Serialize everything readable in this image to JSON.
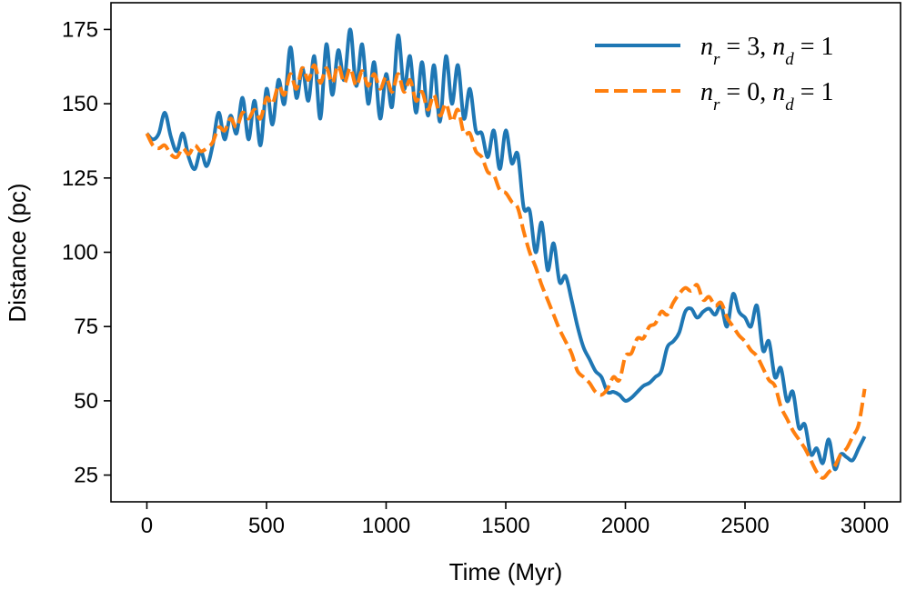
{
  "chart_data": {
    "type": "line",
    "title": "",
    "xlabel": "Time (Myr)",
    "ylabel": "Distance (pc)",
    "xlim": [
      -150,
      3150
    ],
    "ylim": [
      16,
      184
    ],
    "xticks": [
      0,
      500,
      1000,
      1500,
      2000,
      2500,
      3000
    ],
    "yticks": [
      25,
      50,
      75,
      100,
      125,
      150,
      175
    ],
    "legend_position": "top-right",
    "grid": false,
    "series": [
      {
        "name": "n_r=3, n_d=1",
        "label_parts": [
          "n",
          "r",
          " = 3,  ",
          "n",
          "d",
          " = 1"
        ],
        "color": "#1f77b4",
        "style": "solid",
        "x": [
          0,
          25,
          50,
          75,
          100,
          125,
          150,
          175,
          200,
          225,
          250,
          275,
          300,
          325,
          350,
          375,
          400,
          425,
          450,
          475,
          500,
          525,
          550,
          575,
          600,
          625,
          650,
          675,
          700,
          725,
          750,
          775,
          800,
          825,
          850,
          875,
          900,
          925,
          950,
          975,
          1000,
          1025,
          1050,
          1075,
          1100,
          1125,
          1150,
          1175,
          1200,
          1225,
          1250,
          1275,
          1300,
          1325,
          1350,
          1375,
          1400,
          1425,
          1450,
          1475,
          1500,
          1525,
          1550,
          1575,
          1600,
          1625,
          1650,
          1675,
          1700,
          1725,
          1750,
          1775,
          1800,
          1825,
          1850,
          1875,
          1900,
          1925,
          1950,
          1975,
          2000,
          2025,
          2050,
          2075,
          2100,
          2125,
          2150,
          2175,
          2200,
          2225,
          2250,
          2275,
          2300,
          2325,
          2350,
          2375,
          2400,
          2425,
          2450,
          2475,
          2500,
          2525,
          2550,
          2575,
          2600,
          2625,
          2650,
          2675,
          2700,
          2725,
          2750,
          2775,
          2800,
          2825,
          2850,
          2875,
          2900,
          2925,
          2950,
          2975,
          3000
        ],
        "y": [
          140,
          138,
          140,
          147,
          139,
          134,
          140,
          132,
          128,
          134,
          129,
          136,
          147,
          138,
          146,
          140,
          152,
          138,
          151,
          136,
          155,
          143,
          158,
          150,
          169,
          152,
          162,
          151,
          166,
          145,
          170,
          153,
          168,
          158,
          175,
          156,
          170,
          150,
          164,
          145,
          160,
          149,
          173,
          155,
          166,
          147,
          164,
          146,
          163,
          144,
          166,
          150,
          163,
          145,
          155,
          141,
          140,
          132,
          141,
          128,
          141,
          130,
          133,
          115,
          114,
          100,
          110,
          94,
          103,
          90,
          92,
          84,
          75,
          68,
          64,
          60,
          58,
          53,
          53,
          52,
          50,
          51,
          53,
          55,
          56,
          58,
          60,
          68,
          70,
          73,
          80,
          81,
          78,
          80,
          81,
          79,
          82,
          75,
          86,
          80,
          78,
          75,
          82,
          67,
          70,
          58,
          61,
          50,
          53,
          41,
          42,
          32,
          34,
          29,
          37,
          27,
          32,
          31,
          30,
          34,
          38
        ]
      },
      {
        "name": "n_r=0, n_d=1",
        "label_parts": [
          "n",
          "r",
          " = 0,  ",
          "n",
          "d",
          " = 1"
        ],
        "color": "#ff7f0e",
        "style": "dashed",
        "x": [
          0,
          25,
          50,
          75,
          100,
          125,
          150,
          175,
          200,
          225,
          250,
          275,
          300,
          325,
          350,
          375,
          400,
          425,
          450,
          475,
          500,
          525,
          550,
          575,
          600,
          625,
          650,
          675,
          700,
          725,
          750,
          775,
          800,
          825,
          850,
          875,
          900,
          925,
          950,
          975,
          1000,
          1025,
          1050,
          1075,
          1100,
          1125,
          1150,
          1175,
          1200,
          1225,
          1250,
          1275,
          1300,
          1325,
          1350,
          1375,
          1400,
          1425,
          1450,
          1475,
          1500,
          1525,
          1550,
          1575,
          1600,
          1625,
          1650,
          1675,
          1700,
          1725,
          1750,
          1775,
          1800,
          1825,
          1850,
          1875,
          1900,
          1925,
          1950,
          1975,
          2000,
          2025,
          2050,
          2075,
          2100,
          2125,
          2150,
          2175,
          2200,
          2225,
          2250,
          2275,
          2300,
          2325,
          2350,
          2375,
          2400,
          2425,
          2450,
          2475,
          2500,
          2525,
          2550,
          2575,
          2600,
          2625,
          2650,
          2675,
          2700,
          2725,
          2750,
          2775,
          2800,
          2825,
          2850,
          2875,
          2900,
          2925,
          2950,
          2975,
          3000
        ],
        "y": [
          140,
          136,
          135,
          136,
          133,
          132,
          135,
          133,
          136,
          134,
          135,
          137,
          142,
          141,
          145,
          142,
          147,
          145,
          148,
          145,
          152,
          150,
          156,
          153,
          160,
          155,
          162,
          158,
          163,
          157,
          162,
          157,
          163,
          157,
          162,
          156,
          161,
          156,
          160,
          155,
          159,
          154,
          160,
          154,
          158,
          151,
          154,
          148,
          153,
          146,
          150,
          144,
          148,
          140,
          140,
          134,
          132,
          127,
          126,
          121,
          120,
          117,
          115,
          107,
          100,
          95,
          89,
          84,
          79,
          74,
          70,
          66,
          60,
          58,
          56,
          53,
          52,
          54,
          58,
          57,
          65,
          66,
          71,
          71,
          75,
          76,
          80,
          79,
          83,
          86,
          88,
          87,
          89,
          84,
          85,
          82,
          83,
          78,
          75,
          72,
          70,
          67,
          65,
          61,
          57,
          55,
          48,
          44,
          40,
          37,
          34,
          30,
          26,
          24,
          26,
          28,
          32,
          34,
          38,
          42,
          54
        ]
      }
    ]
  }
}
